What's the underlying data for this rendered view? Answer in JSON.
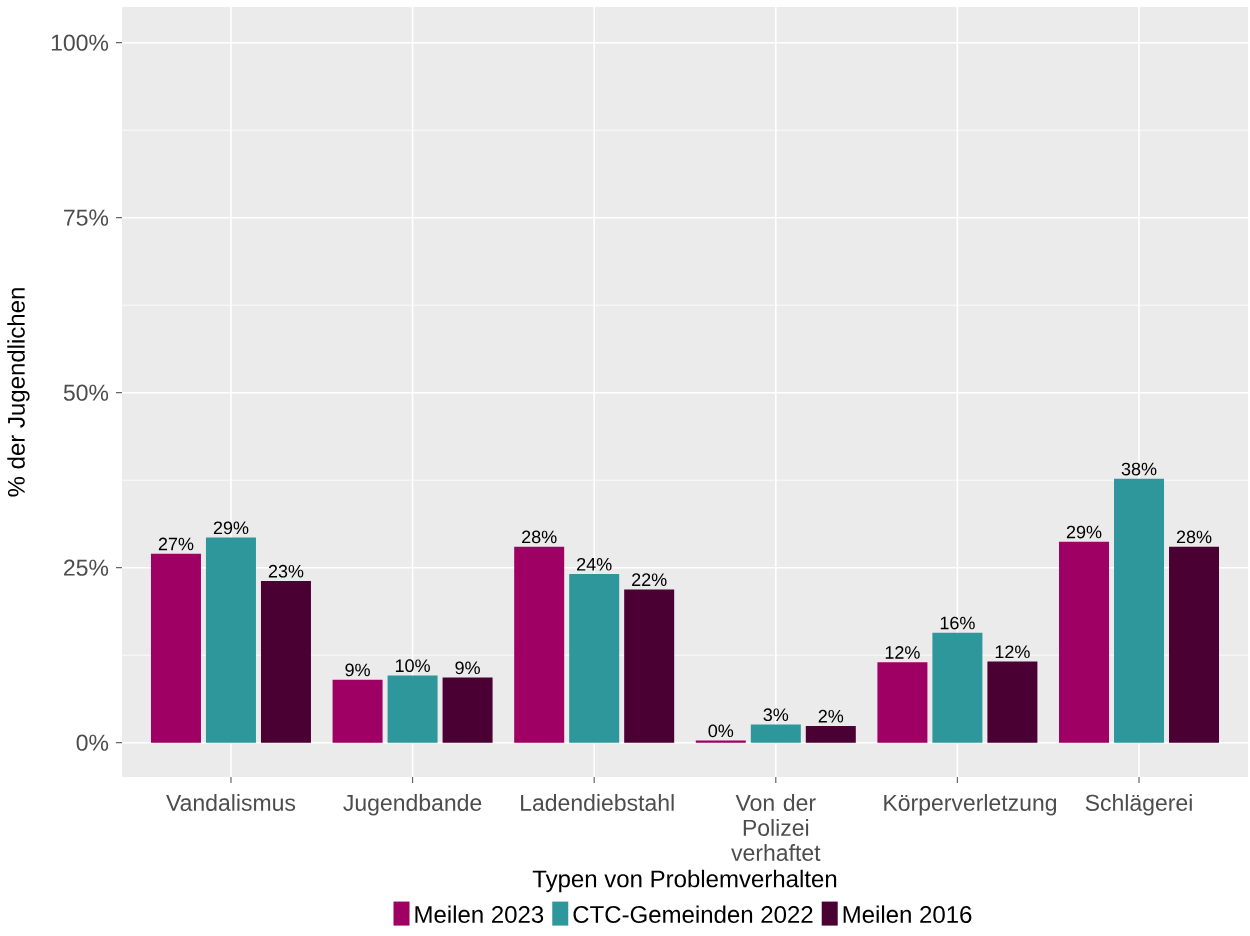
{
  "chart_data": {
    "type": "bar",
    "xlabel": "Typen von Problemverhalten",
    "ylabel": "% der Jugendlichen",
    "categories": [
      "Vandalismus",
      "Jugendbande",
      "Ladendiebstahl",
      "Von der Polizei verhaftet",
      "Körperverletzung",
      "Schlägerei"
    ],
    "series": [
      {
        "name": "Meilen 2023",
        "color": "#9e0063",
        "values": [
          27.0,
          9.0,
          28.0,
          0.3,
          11.5,
          28.7
        ],
        "value_labels": [
          "27%",
          "9%",
          "28%",
          "0%",
          "12%",
          "29%"
        ]
      },
      {
        "name": "CTC-Gemeinden 2022",
        "color": "#2e979b",
        "values": [
          29.3,
          9.6,
          24.1,
          2.6,
          15.7,
          37.7
        ],
        "value_labels": [
          "29%",
          "10%",
          "24%",
          "3%",
          "16%",
          "38%"
        ]
      },
      {
        "name": "Meilen 2016",
        "color": "#4a0033",
        "values": [
          23.1,
          9.3,
          21.9,
          2.4,
          11.6,
          28.0
        ],
        "value_labels": [
          "23%",
          "9%",
          "22%",
          "2%",
          "12%",
          "28%"
        ]
      }
    ],
    "ylim": [
      -4.9,
      105.1
    ],
    "yticks": [
      {
        "value": 0,
        "label": "0%"
      },
      {
        "value": 25,
        "label": "25%"
      },
      {
        "value": 50,
        "label": "50%"
      },
      {
        "value": 75,
        "label": "75%"
      },
      {
        "value": 100,
        "label": "100%"
      }
    ],
    "grid": true,
    "legend": "bottom"
  }
}
